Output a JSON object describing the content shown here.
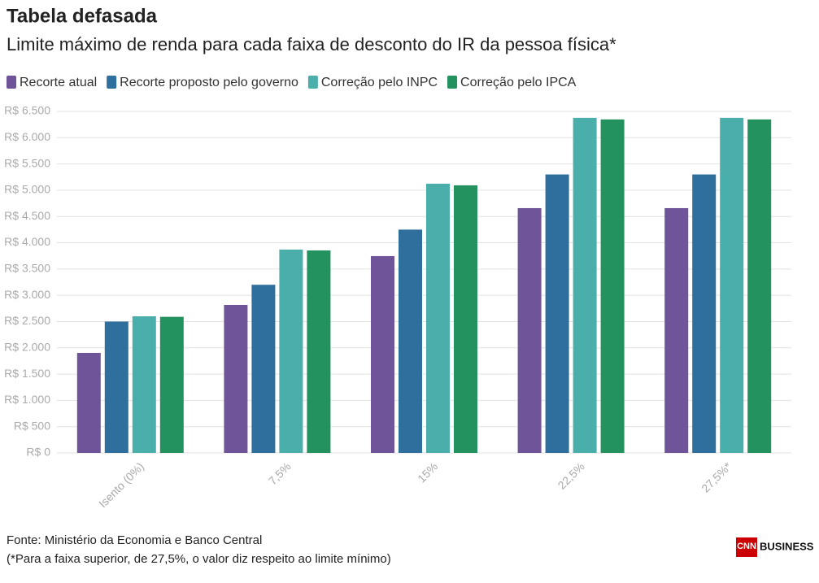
{
  "chart_data": {
    "type": "bar",
    "title": "Tabela defasada",
    "subtitle": "Limite máximo de renda para cada faixa de desconto do IR da pessoa física*",
    "categories": [
      "Isento (0%)",
      "7,5%",
      "15%",
      "22,5%",
      "27,5%*"
    ],
    "series": [
      {
        "name": "Recorte atual",
        "color": "#6f5499",
        "values": [
          1904,
          2817,
          3746,
          4659,
          4659
        ]
      },
      {
        "name": "Recorte proposto pelo governo",
        "color": "#2e6f9e",
        "values": [
          2500,
          3200,
          4250,
          5300,
          5300
        ]
      },
      {
        "name": "Correção pelo INPC",
        "color": "#4aaeaa",
        "values": [
          2600,
          3870,
          5124,
          6378,
          6378
        ]
      },
      {
        "name": "Correção pelo IPCA",
        "color": "#23925f",
        "values": [
          2590,
          3854,
          5093,
          6347,
          6347
        ]
      }
    ],
    "ylim": [
      0,
      6500
    ],
    "yticks": [
      {
        "value": 0,
        "label": "R$ 0"
      },
      {
        "value": 500,
        "label": "R$ 500"
      },
      {
        "value": 1000,
        "label": "R$ 1.000"
      },
      {
        "value": 1500,
        "label": "R$ 1.500"
      },
      {
        "value": 2000,
        "label": "R$ 2.000"
      },
      {
        "value": 2500,
        "label": "R$ 2.500"
      },
      {
        "value": 3000,
        "label": "R$ 3.000"
      },
      {
        "value": 3500,
        "label": "R$ 3.500"
      },
      {
        "value": 4000,
        "label": "R$ 4.000"
      },
      {
        "value": 4500,
        "label": "R$ 4.500"
      },
      {
        "value": 5000,
        "label": "R$ 5.000"
      },
      {
        "value": 5500,
        "label": "R$ 5.500"
      },
      {
        "value": 6000,
        "label": "R$ 6.000"
      },
      {
        "value": 6500,
        "label": "R$ 6.500"
      }
    ],
    "grid": true,
    "source": "Fonte: Ministério da Economia e Banco Central",
    "note": "(*Para a faixa superior, de 27,5%, o valor diz respeito ao limite mínimo)"
  },
  "logo": {
    "brand": "CNN",
    "label": "BUSINESS"
  }
}
